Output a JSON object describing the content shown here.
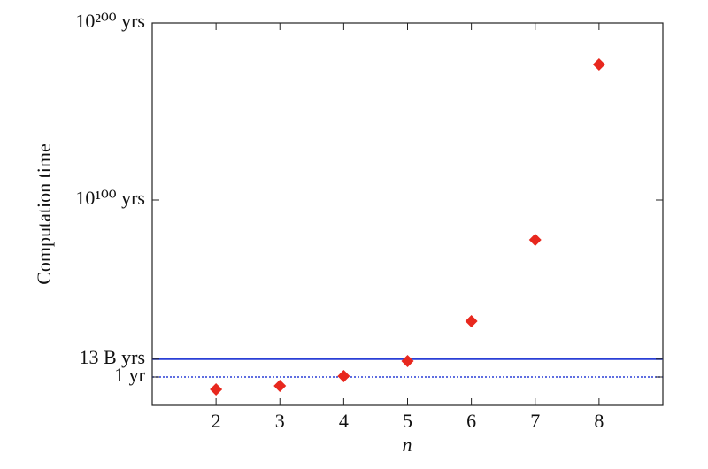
{
  "chart_data": {
    "type": "scatter",
    "x_label": "n",
    "y_label": "Computation time",
    "x": [
      2,
      3,
      4,
      5,
      6,
      7,
      8
    ],
    "series": [
      {
        "color": "#e8281e",
        "values": [
          1e-07,
          1e-05,
          3,
          1000000000.0,
          3e+31,
          3e+77,
          3e+176
        ]
      }
    ],
    "xlim": [
      1,
      9
    ],
    "xticks": [
      2,
      3,
      4,
      5,
      6,
      7,
      8
    ],
    "ylim": [
      1e-16,
      1e+200
    ],
    "log_y": true,
    "yticks": [
      {
        "value": 1,
        "label": "1 yr"
      },
      {
        "value": 13000000000.0,
        "label": "13 B yrs"
      },
      {
        "value": 1e+100,
        "label": "10¹⁰⁰ yrs"
      },
      {
        "value": 1e+200,
        "label": "10²⁰⁰ yrs"
      }
    ],
    "hlines": [
      {
        "value": 13000000000.0,
        "style": "solid",
        "color": "#2a3fd6"
      },
      {
        "value": 1,
        "style": "dotted",
        "color": "#2a3fd6"
      }
    ]
  }
}
